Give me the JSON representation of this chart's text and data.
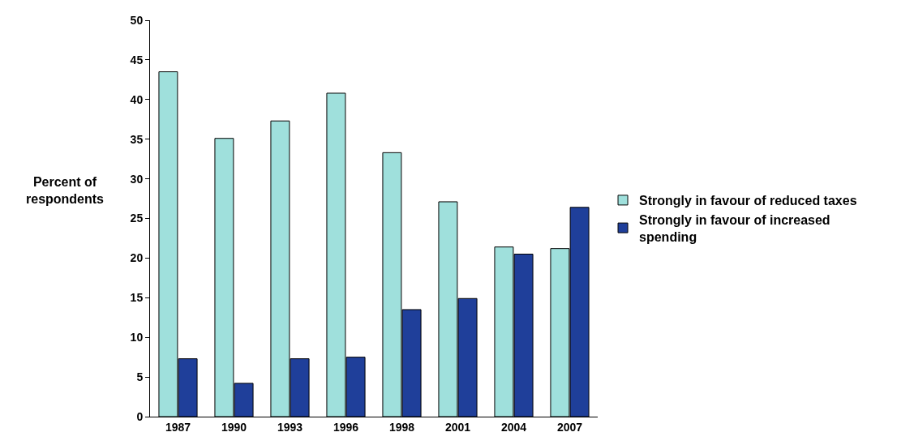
{
  "chart_data": {
    "type": "bar",
    "ylabel": "Percent of respondents",
    "categories": [
      "1987",
      "1990",
      "1993",
      "1996",
      "1998",
      "2001",
      "2004",
      "2007"
    ],
    "series": [
      {
        "name": "Strongly in favour of reduced taxes",
        "color": "#9fe0dc",
        "values": [
          43.5,
          35.1,
          37.3,
          40.8,
          33.3,
          27.1,
          21.4,
          21.2
        ]
      },
      {
        "name": "Strongly in favour of increased spending",
        "color": "#1f3f9a",
        "values": [
          7.3,
          4.2,
          7.3,
          7.5,
          13.5,
          14.9,
          20.5,
          26.4
        ]
      }
    ],
    "ylim": [
      0,
      50
    ],
    "yticks": [
      0,
      5,
      10,
      15,
      20,
      25,
      30,
      35,
      40,
      45,
      50
    ],
    "legend": "right"
  }
}
